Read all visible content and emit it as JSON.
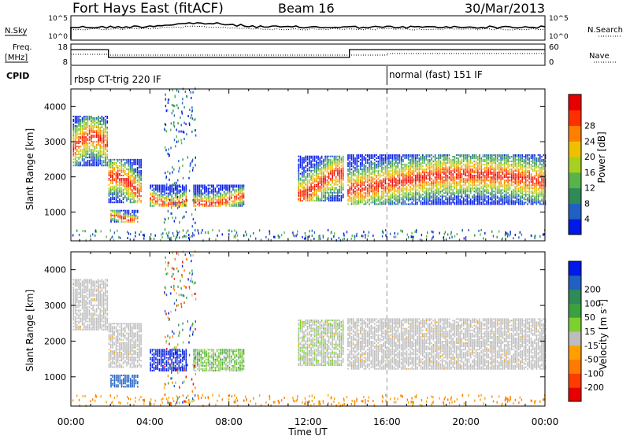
{
  "header": {
    "station": "Fort Hays East (fitACF)",
    "beam": "Beam 16",
    "date": "30/Mar/2013"
  },
  "left_labels": {
    "nsky": "N.Sky",
    "freq_line1": "Freq.",
    "freq_line2": "[MHz]",
    "cpid": "CPID"
  },
  "right_labels": {
    "nsearch": "N.Search",
    "nave": "Nave"
  },
  "nsky_ticks": [
    "10^5",
    "10^0"
  ],
  "nsearch_ticks": [
    "10^5",
    "10^0"
  ],
  "freq_ticks": [
    "18",
    "8"
  ],
  "nave_ticks": [
    "60",
    "0"
  ],
  "cpid_text": [
    "rbsp CT-trig 220 IF",
    "normal (fast) 151 IF"
  ],
  "colors": {
    "power": [
      "#0018e8",
      "#2060c0",
      "#2e8b57",
      "#57b34a",
      "#a8d020",
      "#f0c000",
      "#ff8000",
      "#ff3000",
      "#e80000"
    ],
    "velocity": [
      "#0018e8",
      "#2060c0",
      "#2e8b57",
      "#3ca040",
      "#7cd030",
      "#bdbdbd",
      "#ffa000",
      "#ff7a00",
      "#ff3c00",
      "#e80000"
    ],
    "ground_scatter": "#bdbdbd"
  },
  "chart_data": [
    {
      "type": "heatmap",
      "name": "power",
      "ylabel": "Slant Range [km]",
      "y_ticks": [
        "1000",
        "2000",
        "3000",
        "4000"
      ],
      "x_ticks": [
        "00:00",
        "04:00",
        "08:00",
        "12:00",
        "16:00",
        "20:00",
        "00:00"
      ],
      "xlim_hours": [
        0,
        24
      ],
      "ylim_km": [
        180,
        4500
      ],
      "colorbar_label": "Power [dB]",
      "colorbar_ticks": [
        "4",
        "8",
        "12",
        "16",
        "20",
        "24",
        "28"
      ]
    },
    {
      "type": "heatmap",
      "name": "velocity",
      "ylabel": "Slant Range [km]",
      "y_ticks": [
        "1000",
        "2000",
        "3000",
        "4000"
      ],
      "x_ticks": [
        "00:00",
        "04:00",
        "08:00",
        "12:00",
        "16:00",
        "20:00",
        "00:00"
      ],
      "xlabel": "Time UT",
      "xlim_hours": [
        0,
        24
      ],
      "ylim_km": [
        180,
        4500
      ],
      "colorbar_label": "Velocity [m s",
      "colorbar_label_sup": "-1",
      "colorbar_label_end": "]",
      "colorbar_ticks": [
        "200",
        "100",
        "50",
        "15",
        "-15",
        "-50",
        "-100",
        "-200"
      ]
    }
  ],
  "echo_regions": [
    {
      "t0": 0.1,
      "t1": 1.9,
      "r0": 2300,
      "r1": 3700
    },
    {
      "t0": 1.9,
      "t1": 3.6,
      "r0": 1250,
      "r1": 2500
    },
    {
      "t0": 2.0,
      "t1": 3.4,
      "r0": 700,
      "r1": 1050
    },
    {
      "t0": 4.0,
      "t1": 5.8,
      "r0": 1150,
      "r1": 1750
    },
    {
      "t0": 6.2,
      "t1": 8.8,
      "r0": 1150,
      "r1": 1750
    },
    {
      "t0": 11.5,
      "t1": 13.8,
      "r0": 1300,
      "r1": 2600
    },
    {
      "t0": 14.0,
      "t1": 24.0,
      "r0": 1200,
      "r1": 2600
    }
  ],
  "cpid_change_hour": 16.0
}
